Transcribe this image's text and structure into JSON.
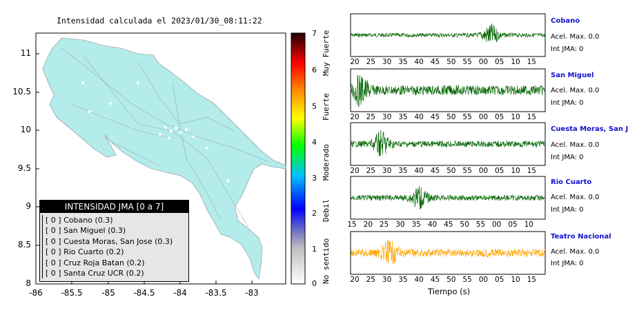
{
  "map": {
    "title": "Intensidad calculada el 2023/01/30_08:11:22",
    "y_ticks": [
      "11",
      "10.5",
      "10",
      "9.5",
      "9",
      "8.5",
      "8"
    ],
    "x_ticks": [
      "-86",
      "-85.5",
      "-85",
      "-84.5",
      "-84",
      "-83.5",
      "-83"
    ],
    "land_color": "#b4ecec",
    "ocean_color": "#ffffff"
  },
  "colorbar": {
    "ticks": [
      "7",
      "6",
      "5",
      "4",
      "3",
      "2",
      "1",
      "0"
    ],
    "labels": [
      "Muy Fuerte",
      "Fuerte",
      "Moderado",
      "Debil",
      "No sentido"
    ]
  },
  "legend": {
    "title": "INTENSIDAD JMA [0 a 7]",
    "rows": [
      "[ 0 ] Cobano (0.3)",
      "[ 0 ] San Miguel (0.3)",
      "[ 0 ] Cuesta Moras, San Jose (0.3)",
      "[ 0 ] Rio Cuarto (0.2)",
      "[ 0 ] Cruz Roja Batan (0.2)",
      "[ 0 ] Santa Cruz UCR (0.2)"
    ]
  },
  "stations": [
    {
      "name": "Cobano",
      "accel": "Acel. Max. 0.0",
      "jma": "Int JMA: 0",
      "color": "#006400",
      "ticks": [
        "20",
        "25",
        "30",
        "35",
        "40",
        "45",
        "50",
        "55",
        "00",
        "05",
        "10",
        "15"
      ]
    },
    {
      "name": "San Miguel",
      "accel": "Acel. Max. 0.0",
      "jma": "Int JMA: 0",
      "color": "#006400",
      "ticks": [
        "20",
        "25",
        "30",
        "35",
        "40",
        "45",
        "50",
        "55",
        "00",
        "05",
        "10",
        "15"
      ]
    },
    {
      "name": "Cuesta Moras, San Jose",
      "accel": "Acel. Max. 0.0",
      "jma": "Int JMA: 0",
      "color": "#006400",
      "ticks": [
        "20",
        "25",
        "30",
        "35",
        "40",
        "45",
        "50",
        "55",
        "00",
        "05",
        "10",
        "15"
      ]
    },
    {
      "name": "Rio Cuarto",
      "accel": "Acel. Max. 0.0",
      "jma": "Int JMA: 0",
      "color": "#006400",
      "ticks": [
        "15",
        "20",
        "25",
        "30",
        "35",
        "40",
        "45",
        "50",
        "55",
        "00",
        "05",
        "10"
      ]
    },
    {
      "name": "Teatro Nacional",
      "accel": "Acel. Max. 0.0",
      "jma": "Int JMA: 0",
      "color": "#ffa500",
      "ticks": [
        "20",
        "25",
        "30",
        "35",
        "40",
        "45",
        "50",
        "55",
        "00",
        "05",
        "10",
        "15"
      ]
    }
  ],
  "xaxis_title": "Tiempo (s)",
  "chart_data": [
    {
      "type": "map",
      "title": "Intensidad calculada el 2023/01/30_08:11:22",
      "xlim": [
        -86,
        -82.6
      ],
      "ylim": [
        8,
        11.3
      ],
      "legend": "INTENSIDAD JMA [0 a 7]"
    },
    {
      "type": "line",
      "series": [
        {
          "name": "Cobano",
          "amplitude": "low-medium, burst near 00"
        },
        {
          "name": "San Miguel",
          "amplitude": "high, strongest at start"
        },
        {
          "name": "Cuesta Moras, San Jose",
          "amplitude": "medium"
        },
        {
          "name": "Rio Cuarto",
          "amplitude": "medium, bursts near 35-50"
        },
        {
          "name": "Teatro Nacional",
          "amplitude": "high throughout"
        }
      ],
      "xlabel": "Tiempo (s)"
    }
  ]
}
